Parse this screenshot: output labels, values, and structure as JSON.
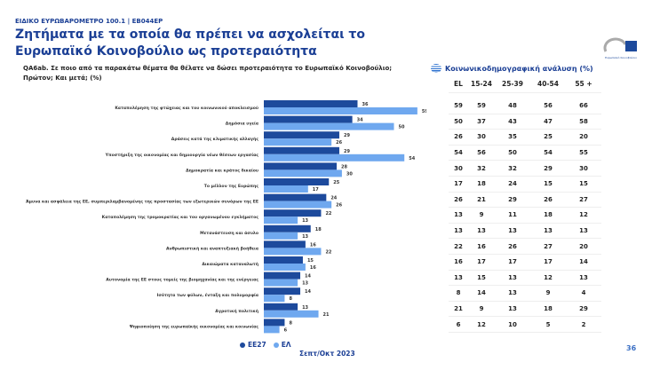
{
  "header": {
    "supertitle": "ΕΙΔΙΚΟ ΕΥΡΩΒΑΡΟΜΕΤΡΟ 100.1 | EB044EP",
    "title": "Ζητήματα με τα οποία θα πρέπει να ασχολείται το Ευρωπαϊκό Κοινοβούλιο ως προτεραιότητα",
    "logo_text": "Ευρωπαϊκό Κοινοβούλιο"
  },
  "question": "QA6ab. Σε ποιο από τα παρακάτω θέματα θα θέλατε να δώσει προτεραιότητα το Ευρωπαϊκό Κοινοβούλιο; Πρώτον; Και μετά; (%)",
  "colors": {
    "EE27": "#1d4a9c",
    "EL": "#6fa8ef"
  },
  "chart_data": {
    "type": "bar",
    "orientation": "horizontal",
    "categories": [
      "Καταπολέμηση της φτώχειας και του κοινωνικού αποκλεισμού",
      "Δημόσια υγεία",
      "Δράσεις κατά της κλιματικής αλλαγής",
      "Υποστήριξη της οικονομίας και δημιουργία νέων θέσεων εργασίας",
      "Δημοκρατία και κράτος δικαίου",
      "Το μέλλον της Ευρώπης",
      "Άμυνα και ασφάλεια της ΕΕ, συμπεριλαμβανομένης της προστασίας των εξωτερικών συνόρων της ΕΕ",
      "Καταπολέμηση της τρομοκρατίας και του οργανωμένου εγκλήματος",
      "Μετανάστευση και άσυλο",
      "Ανθρωπιστική και αναπτυξιακή βοήθεια",
      "Δικαιώματα καταναλωτή",
      "Αυτονομία της ΕΕ στους τομείς της βιομηχανίας και της ενέργειας",
      "Ισότητα των φύλων, ένταξη και πολυμορφία",
      "Αγροτική πολιτική",
      "Ψηφιοποίηση της ευρωπαϊκής οικονομίας και κοινωνίας"
    ],
    "series": [
      {
        "name": "ΕΕ27",
        "values": [
          36,
          34,
          29,
          29,
          28,
          25,
          24,
          22,
          18,
          16,
          15,
          14,
          14,
          13,
          8
        ]
      },
      {
        "name": "ΕΛ",
        "values": [
          59,
          50,
          26,
          54,
          30,
          17,
          26,
          13,
          13,
          22,
          16,
          13,
          8,
          21,
          6
        ]
      }
    ],
    "legend": "bottom",
    "period": "Σεπτ/Οκτ 2023"
  },
  "table": {
    "title": "Κοινωνικοδημογραφική ανάλυση (%)",
    "columns": [
      "EL",
      "15-24",
      "25-39",
      "40-54",
      "55 +"
    ],
    "rows": [
      [
        59,
        59,
        48,
        56,
        66
      ],
      [
        50,
        37,
        43,
        47,
        58
      ],
      [
        26,
        30,
        35,
        25,
        20
      ],
      [
        54,
        56,
        50,
        54,
        55
      ],
      [
        30,
        32,
        32,
        29,
        30
      ],
      [
        17,
        18,
        24,
        15,
        15
      ],
      [
        26,
        21,
        29,
        26,
        27
      ],
      [
        13,
        9,
        11,
        18,
        12
      ],
      [
        13,
        13,
        13,
        13,
        13
      ],
      [
        22,
        16,
        26,
        27,
        20
      ],
      [
        16,
        17,
        17,
        17,
        14
      ],
      [
        13,
        15,
        13,
        12,
        13
      ],
      [
        8,
        14,
        13,
        9,
        4
      ],
      [
        21,
        9,
        13,
        18,
        29
      ],
      [
        6,
        12,
        10,
        5,
        2
      ]
    ]
  },
  "page_number": "36"
}
